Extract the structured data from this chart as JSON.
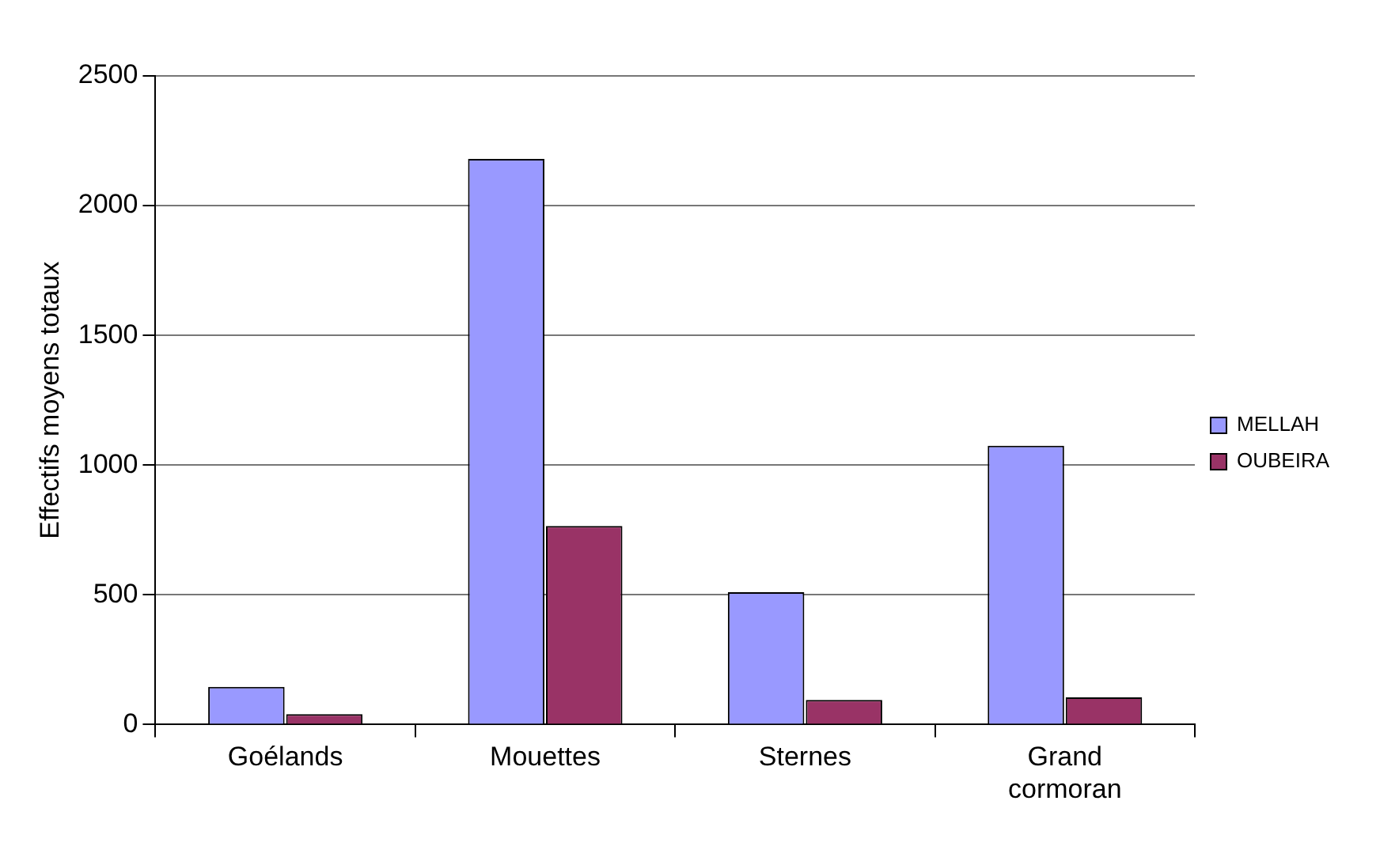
{
  "chart_data": {
    "type": "bar",
    "ylabel": "Effectifs moyens totaux",
    "categories": [
      "Goélands",
      "Mouettes",
      "Sternes",
      "Grand cormoran"
    ],
    "series": [
      {
        "name": "MELLAH",
        "color": "#9999ff",
        "values": [
          145,
          2180,
          510,
          1075
        ]
      },
      {
        "name": "OUBEIRA",
        "color": "#993366",
        "values": [
          40,
          765,
          95,
          105
        ]
      }
    ],
    "ylim": [
      0,
      2500
    ],
    "yticks": [
      0,
      500,
      1000,
      1500,
      2000,
      2500
    ],
    "grid": "y",
    "legend": "right"
  }
}
